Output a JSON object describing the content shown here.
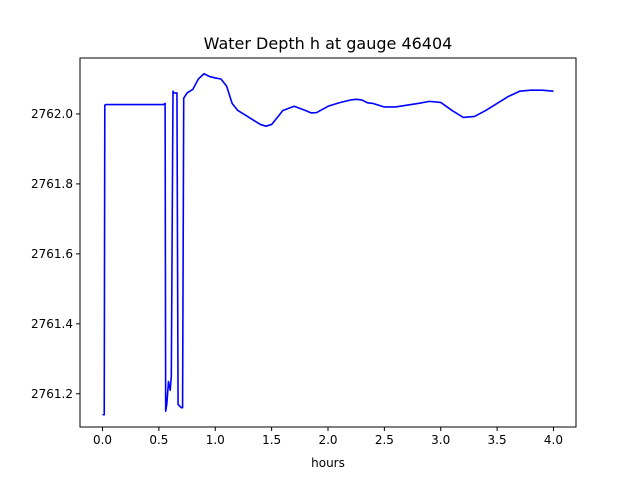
{
  "chart_data": {
    "type": "line",
    "title": "Water Depth h at gauge 46404",
    "xlabel": "hours",
    "ylabel": "",
    "xlim": [
      -0.2,
      4.2
    ],
    "ylim": [
      2761.105,
      2762.16
    ],
    "x_ticks": [
      0.0,
      0.5,
      1.0,
      1.5,
      2.0,
      2.5,
      3.0,
      3.5,
      4.0
    ],
    "x_tick_labels": [
      "0.0",
      "0.5",
      "1.0",
      "1.5",
      "2.0",
      "2.5",
      "3.0",
      "3.5",
      "4.0"
    ],
    "y_ticks": [
      2761.2,
      2761.4,
      2761.6,
      2761.8,
      2762.0
    ],
    "y_tick_labels": [
      "2761.2",
      "2761.4",
      "2761.6",
      "2761.8",
      "2762.0"
    ],
    "grid": false,
    "series": [
      {
        "color": "#0000ff",
        "x": [
          0.0,
          0.015,
          0.02,
          0.03,
          0.2,
          0.4,
          0.54,
          0.555,
          0.56,
          0.57,
          0.585,
          0.6,
          0.61,
          0.625,
          0.63,
          0.64,
          0.66,
          0.67,
          0.7,
          0.71,
          0.72,
          0.75,
          0.8,
          0.85,
          0.9,
          0.95,
          1.0,
          1.05,
          1.1,
          1.15,
          1.2,
          1.3,
          1.4,
          1.45,
          1.5,
          1.6,
          1.7,
          1.8,
          1.85,
          1.9,
          2.0,
          2.1,
          2.2,
          2.25,
          2.3,
          2.35,
          2.4,
          2.5,
          2.6,
          2.7,
          2.8,
          2.9,
          3.0,
          3.1,
          3.2,
          3.3,
          3.4,
          3.5,
          3.6,
          3.7,
          3.8,
          3.9,
          4.0
        ],
        "y": [
          2761.14,
          2761.14,
          2762.025,
          2762.027,
          2762.027,
          2762.027,
          2762.027,
          2762.03,
          2761.15,
          2761.17,
          2761.235,
          2761.21,
          2761.25,
          2762.065,
          2762.06,
          2762.06,
          2762.06,
          2761.17,
          2761.16,
          2761.16,
          2762.045,
          2762.06,
          2762.07,
          2762.1,
          2762.115,
          2762.107,
          2762.103,
          2762.1,
          2762.08,
          2762.03,
          2762.01,
          2761.99,
          2761.97,
          2761.965,
          2761.97,
          2762.01,
          2762.022,
          2762.01,
          2762.003,
          2762.004,
          2762.022,
          2762.032,
          2762.04,
          2762.042,
          2762.04,
          2762.032,
          2762.03,
          2762.02,
          2762.02,
          2762.025,
          2762.03,
          2762.036,
          2762.033,
          2762.01,
          2761.99,
          2761.993,
          2762.01,
          2762.03,
          2762.05,
          2762.065,
          2762.068,
          2762.068,
          2762.065
        ]
      }
    ]
  }
}
